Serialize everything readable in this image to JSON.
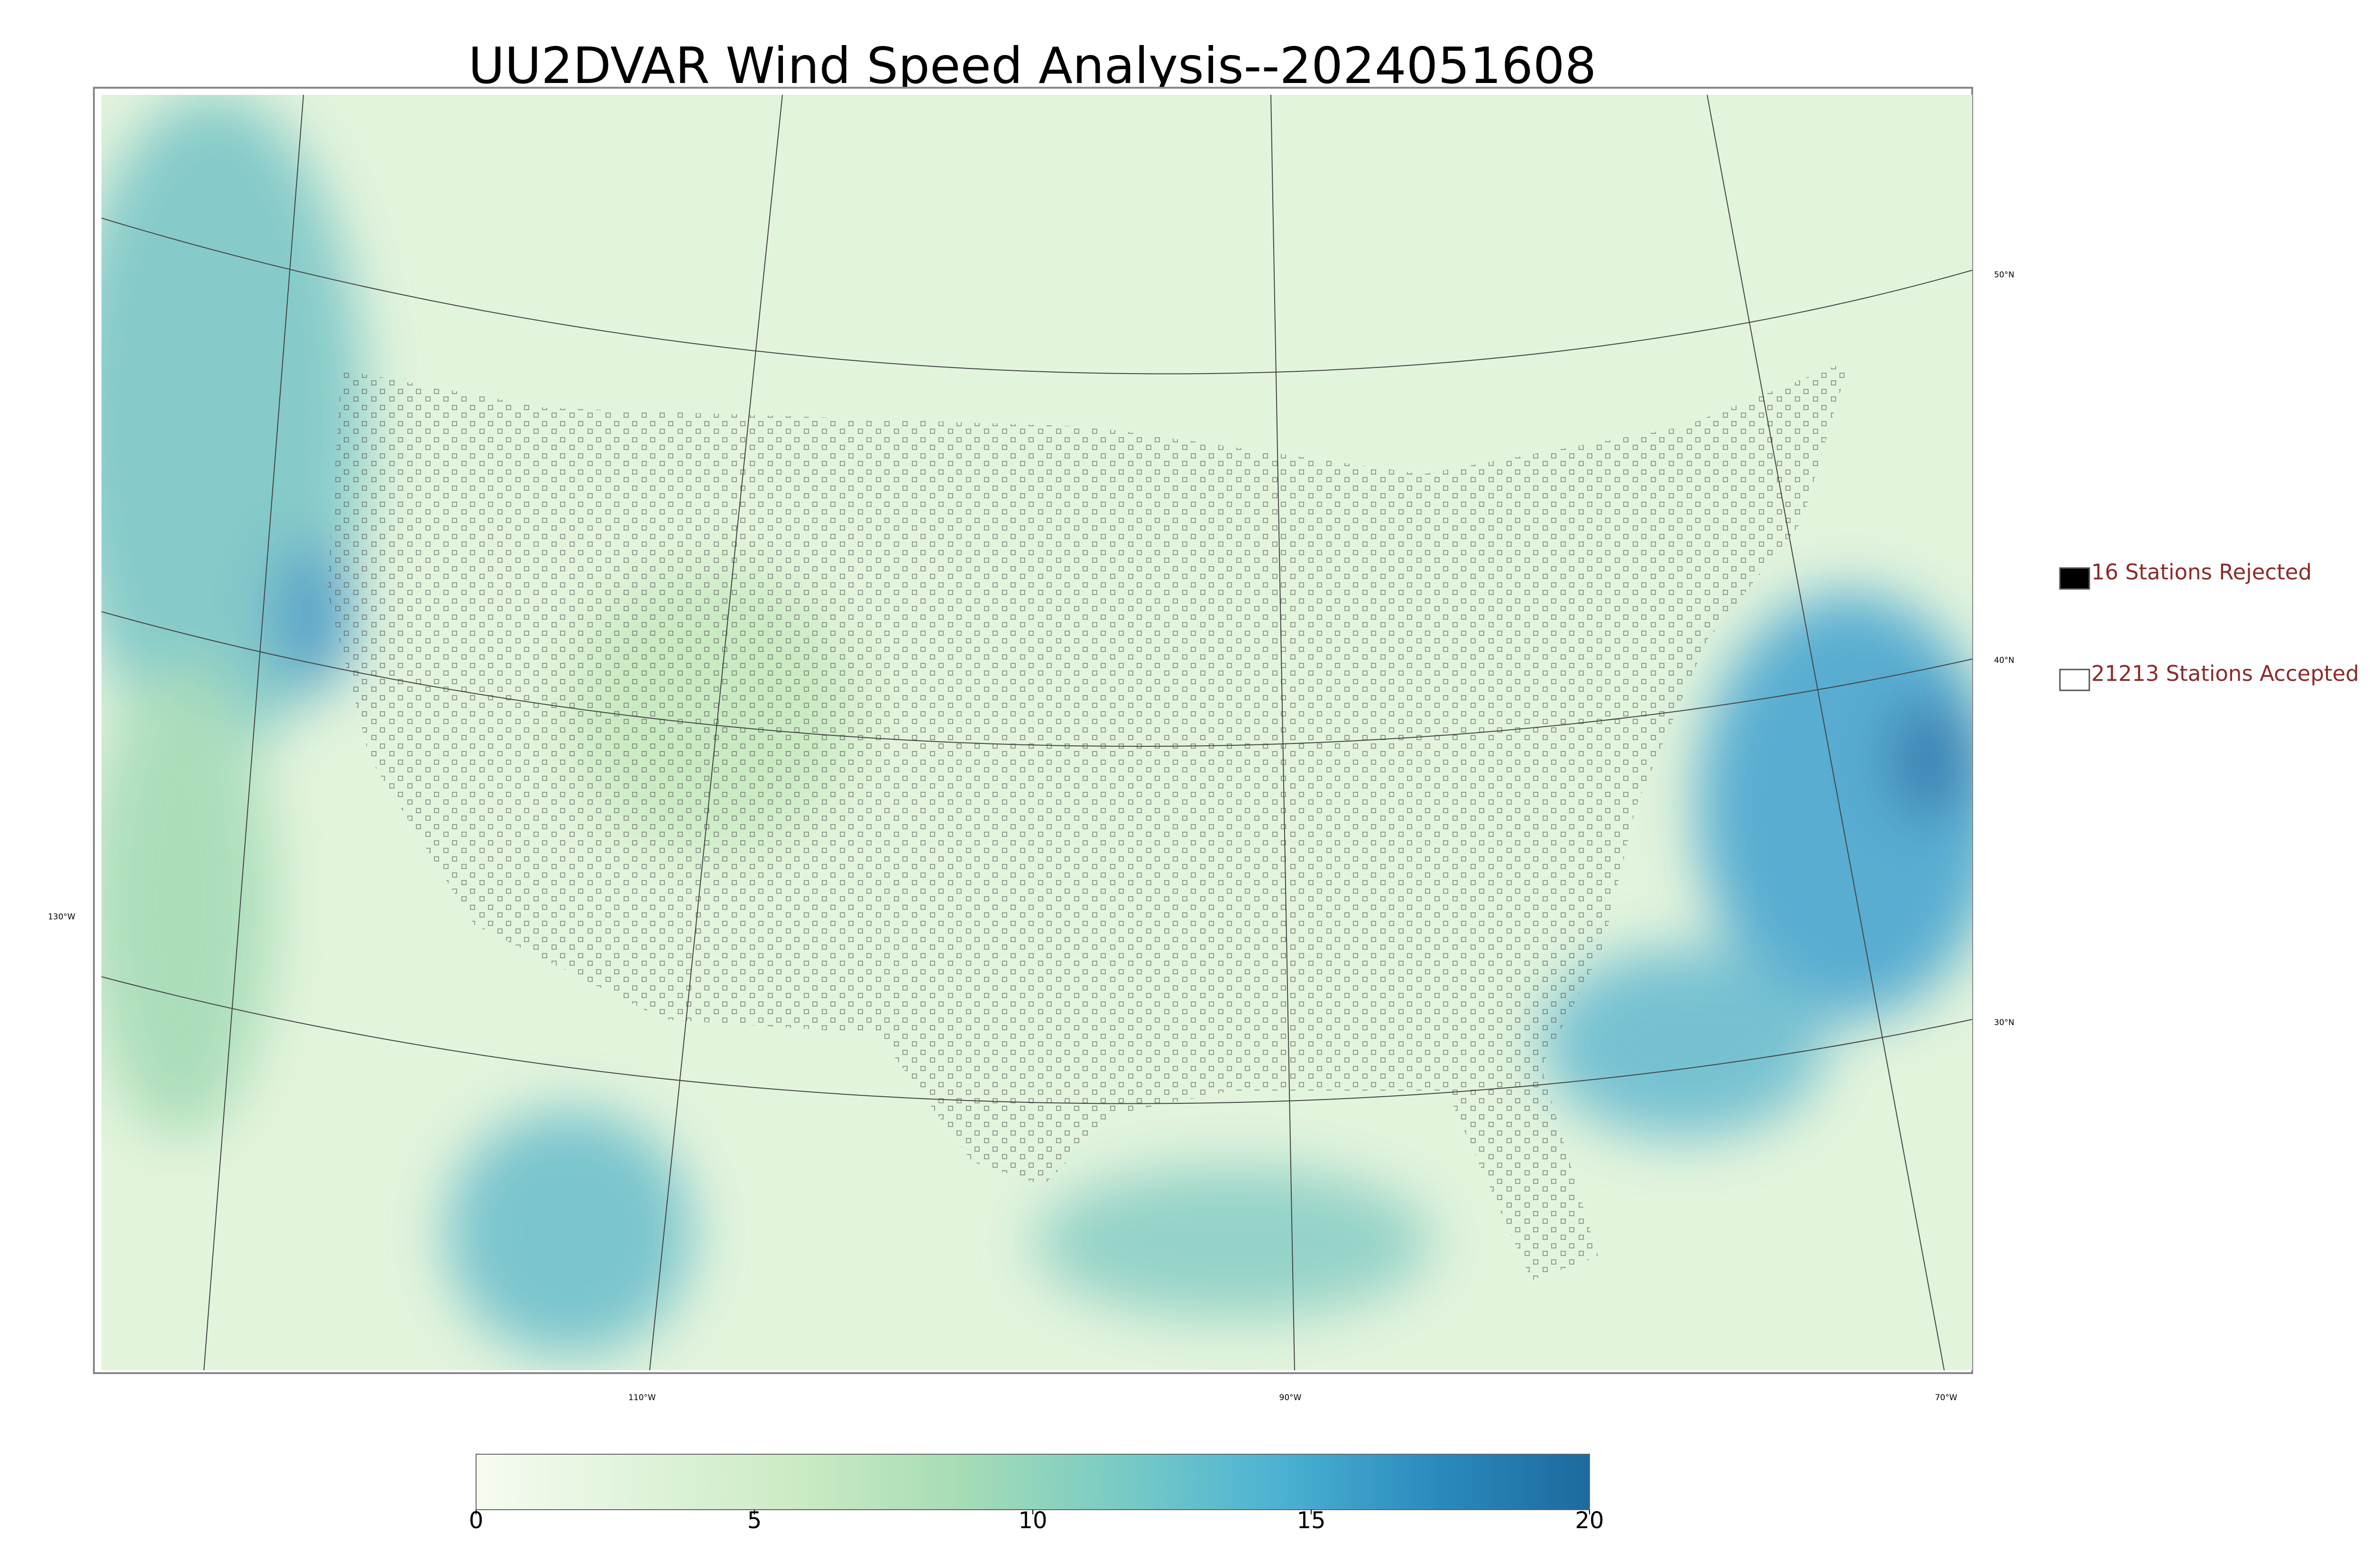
{
  "title": "UU2DVAR Wind Speed Analysis--2024051608",
  "map": {
    "lat_labels": [
      "50°N",
      "40°N",
      "30°N"
    ],
    "lon_labels": [
      "130°W",
      "110°W",
      "90°W",
      "70°W"
    ]
  },
  "legend": [
    {
      "label": "16 Stations Rejected",
      "color": "#000000"
    },
    {
      "label": "21213 Stations Accepted",
      "color": "#ffffff"
    }
  ],
  "colorbar": {
    "lim": [
      0,
      20
    ],
    "ticks": [
      0,
      5,
      10,
      15,
      20
    ],
    "colors": [
      "#f7fcf0",
      "#e0f3db",
      "#ccebc5",
      "#a8ddb5",
      "#7bccc4",
      "#4eb3d3",
      "#2b8cbe",
      "#1d6a9e"
    ]
  }
}
